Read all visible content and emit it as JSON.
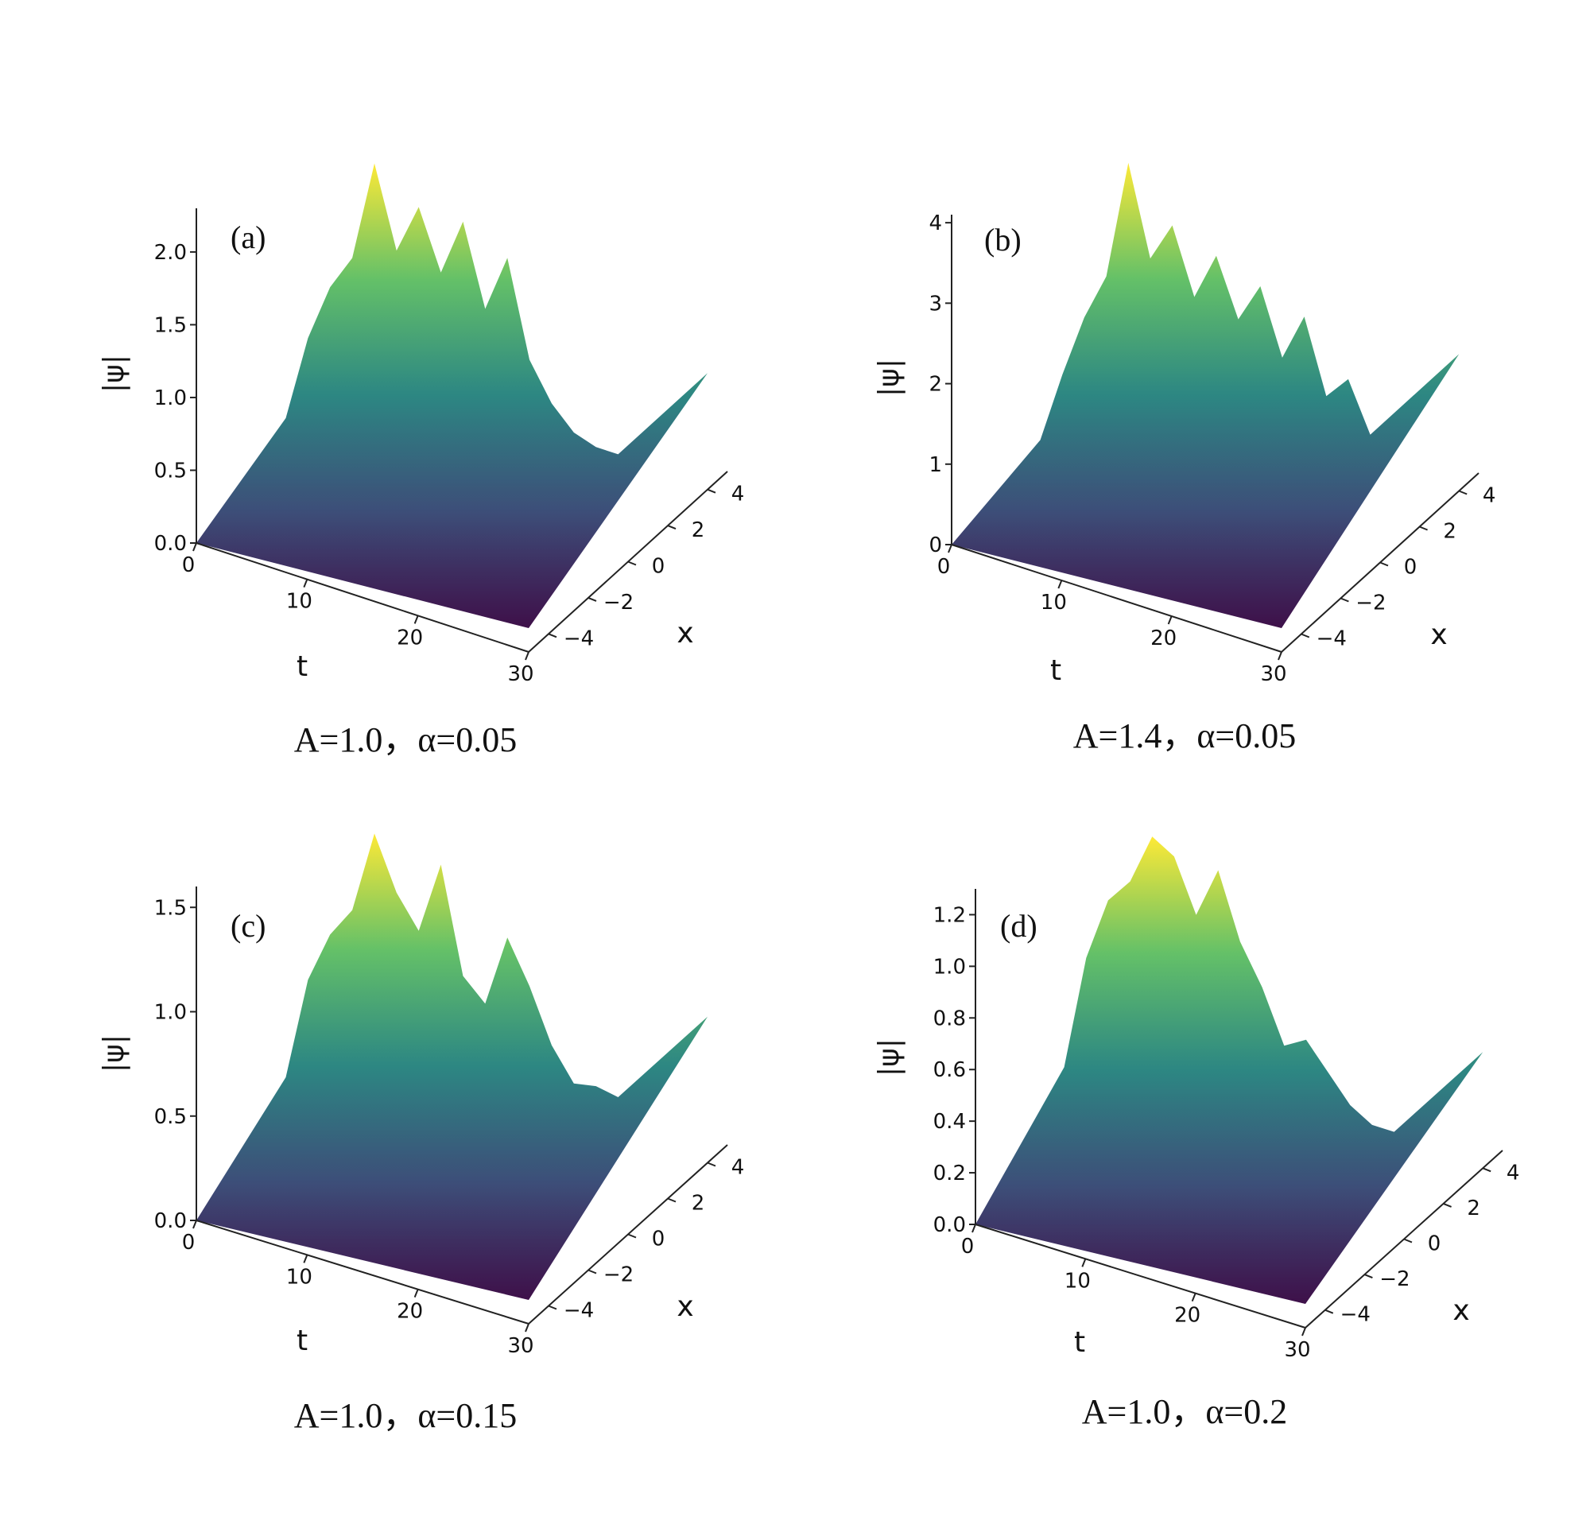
{
  "colors": {
    "low": "#440154",
    "mid": "#21918c",
    "high": "#fde725",
    "axis": "#222222"
  },
  "chart_data": [
    {
      "type": "surface3d",
      "panel_label": "(a)",
      "caption": "A=1.0，α=0.05",
      "zlabel": "|ψ|",
      "tlabel": "t",
      "xlabel": "x",
      "zlim": [
        0,
        2.3
      ],
      "tlim": [
        0,
        30
      ],
      "xlim": [
        -5,
        5
      ],
      "z_ticks": [
        0.0,
        0.5,
        1.0,
        1.5,
        2.0
      ],
      "z_tick_labels": [
        "0.0",
        "0.5",
        "1.0",
        "1.5",
        "2.0"
      ],
      "t_ticks": [
        0,
        10,
        20,
        30
      ],
      "t_tick_labels": [
        "0",
        "10",
        "20",
        "30"
      ],
      "x_ticks": [
        -4,
        -2,
        0,
        2,
        4
      ],
      "x_tick_labels": [
        "−4",
        "−2",
        "0",
        "2",
        "4"
      ],
      "ridge_profile": {
        "t": [
          0,
          2,
          4,
          6,
          8,
          10,
          12,
          14,
          16,
          18,
          20,
          22,
          24,
          26,
          28,
          30
        ],
        "max_psi": [
          0.3,
          0.9,
          1.3,
          1.55,
          2.25,
          1.7,
          2.05,
          1.65,
          2.05,
          1.5,
          1.9,
          1.25,
          1.0,
          0.85,
          0.8,
          0.8
        ]
      }
    },
    {
      "type": "surface3d",
      "panel_label": "(b)",
      "caption": "A=1.4，α=0.05",
      "zlabel": "|ψ|",
      "tlabel": "t",
      "xlabel": "x",
      "zlim": [
        0,
        4.1
      ],
      "tlim": [
        0,
        30
      ],
      "xlim": [
        -5,
        5
      ],
      "z_ticks": [
        0,
        1,
        2,
        3,
        4
      ],
      "z_tick_labels": [
        "0",
        "1",
        "2",
        "3",
        "4"
      ],
      "t_ticks": [
        0,
        10,
        20,
        30
      ],
      "t_tick_labels": [
        "0",
        "10",
        "20",
        "30"
      ],
      "x_ticks": [
        -4,
        -2,
        0,
        2,
        4
      ],
      "x_tick_labels": [
        "−4",
        "−2",
        "0",
        "2",
        "4"
      ],
      "ridge_profile": {
        "t": [
          0,
          2,
          4,
          6,
          8,
          10,
          12,
          14,
          16,
          18,
          20,
          22,
          24,
          26,
          28,
          30
        ],
        "max_psi": [
          0.3,
          1.2,
          2.0,
          2.6,
          4.1,
          3.0,
          3.5,
          2.7,
          3.3,
          2.6,
          3.1,
          2.3,
          2.9,
          2.0,
          2.3,
          1.7
        ]
      }
    },
    {
      "type": "surface3d",
      "panel_label": "(c)",
      "caption": "A=1.0，α=0.15",
      "zlabel": "|ψ|",
      "tlabel": "t",
      "xlabel": "x",
      "zlim": [
        0,
        1.6
      ],
      "tlim": [
        0,
        30
      ],
      "xlim": [
        -5,
        5
      ],
      "z_ticks": [
        0.0,
        0.5,
        1.0,
        1.5
      ],
      "z_tick_labels": [
        "0.0",
        "0.5",
        "1.0",
        "1.5"
      ],
      "t_ticks": [
        0,
        10,
        20,
        30
      ],
      "t_tick_labels": [
        "0",
        "10",
        "20",
        "30"
      ],
      "x_ticks": [
        -4,
        -2,
        0,
        2,
        4
      ],
      "x_tick_labels": [
        "−4",
        "−2",
        "0",
        "2",
        "4"
      ],
      "ridge_profile": {
        "t": [
          0,
          2,
          4,
          6,
          8,
          10,
          12,
          14,
          16,
          18,
          20,
          22,
          24,
          26,
          28,
          30
        ],
        "max_psi": [
          0.3,
          0.8,
          1.05,
          1.2,
          1.6,
          1.35,
          1.2,
          1.55,
          1.05,
          0.95,
          1.3,
          1.1,
          0.85,
          0.7,
          0.72,
          0.7
        ]
      }
    },
    {
      "type": "surface3d",
      "panel_label": "(d)",
      "caption": "A=1.0，α=0.2",
      "zlabel": "|ψ|",
      "tlabel": "t",
      "xlabel": "x",
      "zlim": [
        0,
        1.3
      ],
      "tlim": [
        0,
        30
      ],
      "xlim": [
        -5,
        5
      ],
      "z_ticks": [
        0.0,
        0.2,
        0.4,
        0.6,
        0.8,
        1.0,
        1.2
      ],
      "z_tick_labels": [
        "0.0",
        "0.2",
        "0.4",
        "0.6",
        "0.8",
        "1.0",
        "1.2"
      ],
      "t_ticks": [
        0,
        10,
        20,
        30
      ],
      "t_tick_labels": [
        "0",
        "10",
        "20",
        "30"
      ],
      "x_ticks": [
        -4,
        -2,
        0,
        2,
        4
      ],
      "x_tick_labels": [
        "−4",
        "−2",
        "0",
        "2",
        "4"
      ],
      "ridge_profile": {
        "t": [
          0,
          2,
          4,
          6,
          8,
          10,
          12,
          14,
          16,
          18,
          20,
          22,
          24,
          26,
          28,
          30
        ],
        "max_psi": [
          0.3,
          0.75,
          1.0,
          1.1,
          1.3,
          1.25,
          1.05,
          1.25,
          1.0,
          0.85,
          0.65,
          0.7,
          0.6,
          0.5,
          0.45,
          0.45
        ]
      }
    }
  ]
}
